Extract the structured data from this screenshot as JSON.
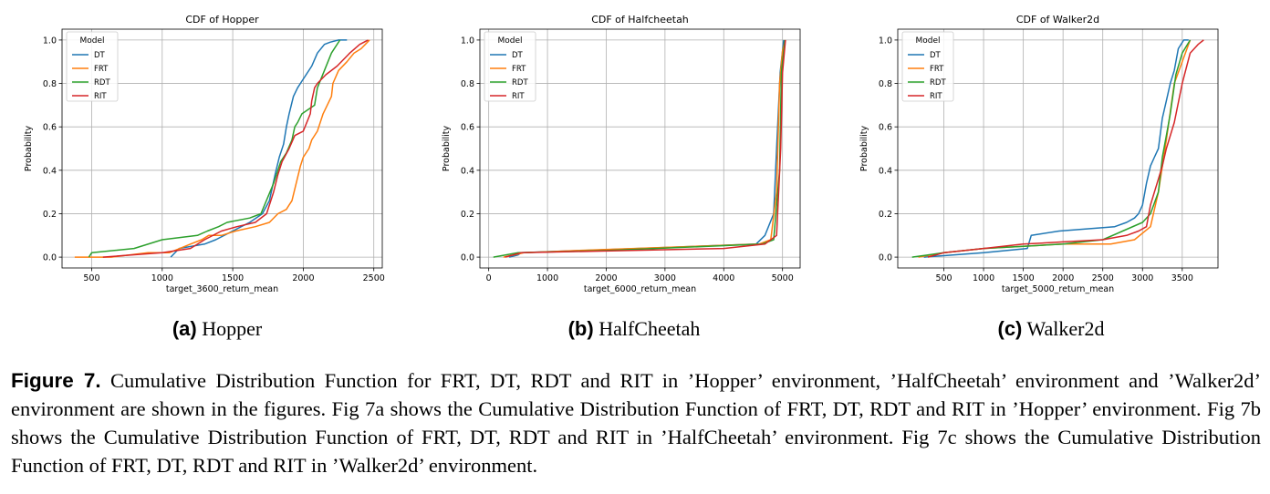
{
  "colors": {
    "DT": "#1f77b4",
    "FRT": "#ff7f0e",
    "RDT": "#2ca02c",
    "RIT": "#d62728"
  },
  "chart_data": [
    {
      "type": "line",
      "title": "CDF of Hopper",
      "xlabel": "target_3600_return_mean",
      "ylabel": "Probability",
      "xlim": [
        290,
        2560
      ],
      "ylim": [
        -0.05,
        1.05
      ],
      "xticks": [
        500,
        1000,
        1500,
        2000,
        2500
      ],
      "yticks": [
        0.0,
        0.2,
        0.4,
        0.6,
        0.8,
        1.0
      ],
      "grid": true,
      "legend": {
        "title": "Model",
        "position": "upper-left"
      },
      "series": [
        {
          "name": "DT",
          "x": [
            1060,
            1120,
            1300,
            1380,
            1560,
            1620,
            1710,
            1760,
            1800,
            1830,
            1860,
            1880,
            1900,
            1930,
            1960,
            1980,
            2020,
            2060,
            2100,
            2150,
            2190,
            2250,
            2290,
            2310
          ],
          "y": [
            0.0,
            0.04,
            0.06,
            0.08,
            0.14,
            0.16,
            0.2,
            0.26,
            0.38,
            0.46,
            0.52,
            0.6,
            0.66,
            0.74,
            0.78,
            0.8,
            0.84,
            0.88,
            0.94,
            0.98,
            0.99,
            1.0,
            1.0,
            1.0
          ]
        },
        {
          "name": "FRT",
          "x": [
            380,
            640,
            900,
            1050,
            1200,
            1280,
            1330,
            1420,
            1520,
            1660,
            1760,
            1820,
            1880,
            1900,
            1920,
            1980,
            2000,
            2040,
            2060,
            2100,
            2140,
            2200,
            2210,
            2250,
            2310,
            2360,
            2410,
            2440,
            2470
          ],
          "y": [
            0.0,
            0.0,
            0.02,
            0.02,
            0.06,
            0.08,
            0.1,
            0.1,
            0.12,
            0.14,
            0.16,
            0.2,
            0.22,
            0.24,
            0.26,
            0.42,
            0.46,
            0.5,
            0.54,
            0.58,
            0.66,
            0.74,
            0.8,
            0.86,
            0.9,
            0.94,
            0.96,
            0.98,
            1.0
          ]
        },
        {
          "name": "RDT",
          "x": [
            480,
            500,
            800,
            1000,
            1250,
            1320,
            1400,
            1460,
            1620,
            1700,
            1790,
            1840,
            1880,
            1920,
            1940,
            1960,
            1990,
            2080,
            2100,
            2150,
            2200,
            2260
          ],
          "y": [
            0.0,
            0.02,
            0.04,
            0.08,
            0.1,
            0.12,
            0.14,
            0.16,
            0.18,
            0.2,
            0.34,
            0.44,
            0.48,
            0.54,
            0.6,
            0.62,
            0.66,
            0.7,
            0.78,
            0.86,
            0.94,
            1.0
          ]
        },
        {
          "name": "RIT",
          "x": [
            580,
            1000,
            1200,
            1300,
            1420,
            1530,
            1660,
            1740,
            1790,
            1820,
            1850,
            1900,
            1940,
            2000,
            2050,
            2060,
            2080,
            2100,
            2160,
            2240,
            2330,
            2400,
            2460
          ],
          "y": [
            0.0,
            0.02,
            0.04,
            0.08,
            0.12,
            0.14,
            0.16,
            0.2,
            0.3,
            0.38,
            0.44,
            0.5,
            0.56,
            0.58,
            0.66,
            0.72,
            0.78,
            0.8,
            0.84,
            0.88,
            0.94,
            0.98,
            1.0
          ]
        }
      ]
    },
    {
      "type": "line",
      "title": "CDF of Halfcheetah",
      "xlabel": "target_6000_return_mean",
      "ylabel": "Probability",
      "xlim": [
        -150,
        5300
      ],
      "ylim": [
        -0.05,
        1.05
      ],
      "xticks": [
        0,
        1000,
        2000,
        3000,
        4000,
        5000
      ],
      "yticks": [
        0.0,
        0.2,
        0.4,
        0.6,
        0.8,
        1.0
      ],
      "grid": true,
      "legend": {
        "title": "Model",
        "position": "upper-left"
      },
      "series": [
        {
          "name": "DT",
          "x": [
            350,
            500,
            550,
            4550,
            4700,
            4850,
            4900,
            4960,
            5020
          ],
          "y": [
            0.0,
            0.01,
            0.02,
            0.06,
            0.1,
            0.2,
            0.5,
            0.85,
            1.0
          ]
        },
        {
          "name": "FRT",
          "x": [
            250,
            600,
            1500,
            4600,
            4800,
            4900,
            4950,
            5000,
            5050
          ],
          "y": [
            0.0,
            0.02,
            0.03,
            0.06,
            0.08,
            0.3,
            0.8,
            0.95,
            1.0
          ]
        },
        {
          "name": "RDT",
          "x": [
            80,
            500,
            2000,
            4650,
            4850,
            4950,
            4980,
            5040
          ],
          "y": [
            0.0,
            0.02,
            0.03,
            0.06,
            0.08,
            0.4,
            0.85,
            1.0
          ]
        },
        {
          "name": "RIT",
          "x": [
            280,
            550,
            4000,
            4700,
            4900,
            4970,
            5000,
            5050
          ],
          "y": [
            0.0,
            0.02,
            0.04,
            0.06,
            0.1,
            0.5,
            0.85,
            1.0
          ]
        }
      ]
    },
    {
      "type": "line",
      "title": "CDF of Walker2d",
      "xlabel": "target_5000_return_mean",
      "ylabel": "Probability",
      "xlim": [
        -80,
        3950
      ],
      "ylim": [
        -0.05,
        1.05
      ],
      "xticks": [
        500,
        1000,
        1500,
        2000,
        2500,
        3000,
        3500
      ],
      "yticks": [
        0.0,
        0.2,
        0.4,
        0.6,
        0.8,
        1.0
      ],
      "grid": true,
      "legend": {
        "title": "Model",
        "position": "upper-left"
      },
      "series": [
        {
          "name": "DT",
          "x": [
            250,
            1000,
            1550,
            1600,
            1950,
            2650,
            2800,
            2900,
            2950,
            3000,
            3050,
            3100,
            3150,
            3200,
            3250,
            3300,
            3350,
            3400,
            3450,
            3520,
            3580
          ],
          "y": [
            0.0,
            0.02,
            0.04,
            0.1,
            0.12,
            0.14,
            0.16,
            0.18,
            0.2,
            0.24,
            0.34,
            0.42,
            0.46,
            0.5,
            0.64,
            0.72,
            0.8,
            0.86,
            0.96,
            1.0,
            1.0
          ]
        },
        {
          "name": "FRT",
          "x": [
            180,
            500,
            1000,
            1500,
            2000,
            2600,
            2900,
            3100,
            3200,
            3300,
            3400,
            3500,
            3600
          ],
          "y": [
            0.0,
            0.02,
            0.04,
            0.05,
            0.06,
            0.06,
            0.08,
            0.14,
            0.3,
            0.54,
            0.8,
            0.9,
            1.0
          ]
        },
        {
          "name": "RDT",
          "x": [
            100,
            500,
            1000,
            1500,
            2000,
            2500,
            2750,
            3000,
            3100,
            3200,
            3250,
            3300,
            3350,
            3420,
            3500,
            3600
          ],
          "y": [
            0.0,
            0.02,
            0.04,
            0.05,
            0.06,
            0.08,
            0.12,
            0.16,
            0.2,
            0.3,
            0.46,
            0.56,
            0.66,
            0.84,
            0.94,
            1.0
          ]
        },
        {
          "name": "RIT",
          "x": [
            300,
            500,
            1000,
            1500,
            2000,
            2500,
            2800,
            2950,
            3050,
            3100,
            3200,
            3250,
            3300,
            3400,
            3500,
            3600,
            3700,
            3770
          ],
          "y": [
            0.0,
            0.02,
            0.04,
            0.06,
            0.07,
            0.08,
            0.1,
            0.12,
            0.14,
            0.24,
            0.36,
            0.42,
            0.5,
            0.62,
            0.8,
            0.94,
            0.98,
            1.0
          ]
        }
      ]
    }
  ],
  "subcaptions": [
    {
      "tag": "(a)",
      "text": "Hopper"
    },
    {
      "tag": "(b)",
      "text": "HalfCheetah"
    },
    {
      "tag": "(c)",
      "text": "Walker2d"
    }
  ],
  "caption": {
    "label": "Figure 7.",
    "text": "Cumulative Distribution Function for FRT, DT, RDT and RIT in ’Hopper’ environment, ’HalfCheetah’ environment and ’Walker2d’ environment are shown in the figures. Fig 7a shows the Cumulative Distribution Function of FRT, DT, RDT and RIT in ’Hopper’ environment. Fig 7b shows the Cumulative Distribution Function of FRT, DT, RDT and RIT in ’HalfCheetah’ environment. Fig 7c shows the Cumulative Distribution Function of FRT, DT, RDT and RIT in ’Walker2d’ environment."
  }
}
